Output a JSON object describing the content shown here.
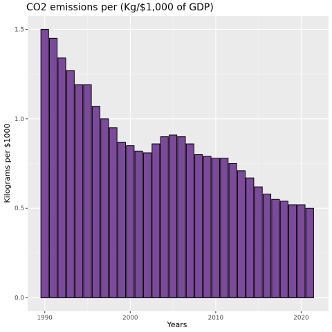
{
  "chart_data": {
    "type": "bar",
    "title": "CO2 emissions per (Kg/$1,000 of GDP)",
    "xlabel": "Years",
    "ylabel": "Kilograms per $1000",
    "x": [
      1990,
      1991,
      1992,
      1993,
      1994,
      1995,
      1996,
      1997,
      1998,
      1999,
      2000,
      2001,
      2002,
      2003,
      2004,
      2005,
      2006,
      2007,
      2008,
      2009,
      2010,
      2011,
      2012,
      2013,
      2014,
      2015,
      2016,
      2017,
      2018,
      2019,
      2020,
      2021
    ],
    "values": [
      1.5,
      1.45,
      1.34,
      1.27,
      1.19,
      1.19,
      1.07,
      1.0,
      0.95,
      0.87,
      0.85,
      0.82,
      0.81,
      0.86,
      0.9,
      0.91,
      0.9,
      0.86,
      0.8,
      0.79,
      0.78,
      0.78,
      0.75,
      0.71,
      0.67,
      0.62,
      0.58,
      0.55,
      0.54,
      0.52,
      0.52,
      0.5
    ],
    "xticks": [
      1990,
      2000,
      2010,
      2020
    ],
    "yticks": [
      0.0,
      0.5,
      1.0,
      1.5
    ],
    "ytick_labels": [
      "0.0",
      "0.5",
      "1.0",
      "1.5"
    ],
    "xlim": [
      1988.0,
      2023.2
    ],
    "ylim": [
      -0.075,
      1.575
    ],
    "grid": true,
    "colors": {
      "bar_fill": "#7B4A9B",
      "bar_stroke": "#000000",
      "panel_bg": "#EBEBEB",
      "grid_major": "#FFFFFF",
      "grid_minor": "#F5F5F5"
    }
  }
}
